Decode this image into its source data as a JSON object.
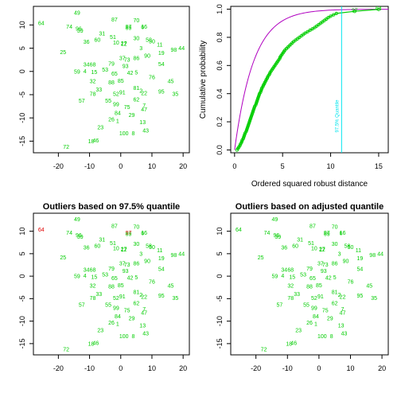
{
  "chart_data": [
    {
      "type": "scatter",
      "title": "",
      "xlabel": "",
      "ylabel": "",
      "xlim": [
        -28,
        22
      ],
      "ylim": [
        -17.5,
        14
      ],
      "xticks": [
        "-20",
        "-10",
        "0",
        "10",
        "20"
      ],
      "yticks": [
        "-15",
        "-10",
        "-5",
        "0",
        "5",
        "10"
      ],
      "point_color": "#00CD00",
      "outliers": []
    },
    {
      "type": "line",
      "title": "",
      "xlabel": "Ordered squared robust distance",
      "ylabel": "Cumulative probability",
      "xlim": [
        -0.4,
        16
      ],
      "ylim": [
        -0.02,
        1.02
      ],
      "xticks": [
        "0",
        "5",
        "10",
        "15"
      ],
      "yticks": [
        "0.0",
        "0.2",
        "0.4",
        "0.6",
        "0.8",
        "1.0"
      ],
      "quantile_line": {
        "x": 11.14,
        "label": "97.5% Quantile",
        "color": "#00E5EE"
      },
      "ecdf_color": "#00CD00",
      "chi2_curve_color": "#B000C0",
      "labelled_points": [
        {
          "id": "97",
          "x": 12.5,
          "y": 0.985
        },
        {
          "id": "64",
          "x": 15.0,
          "y": 0.999
        }
      ]
    },
    {
      "type": "scatter",
      "title": "Outliers based on 97.5% quantile",
      "xlabel": "",
      "ylabel": "",
      "xlim": [
        -28,
        22
      ],
      "ylim": [
        -17.5,
        14
      ],
      "xticks": [
        "-20",
        "-10",
        "0",
        "10",
        "20"
      ],
      "yticks": [
        "-15",
        "-10",
        "-5",
        "0",
        "5",
        "10"
      ],
      "point_color": "#00CD00",
      "outlier_color": "#E00000",
      "outliers": [
        "64",
        "97"
      ]
    },
    {
      "type": "scatter",
      "title": "Outliers based on adjusted quantile",
      "xlabel": "",
      "ylabel": "",
      "xlim": [
        -28,
        22
      ],
      "ylim": [
        -17.5,
        14
      ],
      "xticks": [
        "-20",
        "-10",
        "0",
        "10",
        "20"
      ],
      "yticks": [
        "-15",
        "-10",
        "-5",
        "0",
        "5",
        "10"
      ],
      "point_color": "#00CD00",
      "outliers": []
    }
  ],
  "points": [
    {
      "id": "49",
      "x": -14,
      "y": 12.5
    },
    {
      "id": "64",
      "x": -25.5,
      "y": 10.2
    },
    {
      "id": "87",
      "x": -2,
      "y": 11.0
    },
    {
      "id": "70",
      "x": 5,
      "y": 10.8
    },
    {
      "id": "97",
      "x": 2.5,
      "y": 9.5
    },
    {
      "id": "16",
      "x": 7.5,
      "y": 9.5
    },
    {
      "id": "69",
      "x": 2.5,
      "y": 9.2
    },
    {
      "id": "6",
      "x": 7,
      "y": 9.4
    },
    {
      "id": "74",
      "x": -16.5,
      "y": 9.5
    },
    {
      "id": "96",
      "x": -13.5,
      "y": 9.0
    },
    {
      "id": "39",
      "x": -13,
      "y": 8.6
    },
    {
      "id": "31",
      "x": -6,
      "y": 8.0
    },
    {
      "id": "51",
      "x": -2.5,
      "y": 7.2
    },
    {
      "id": "30",
      "x": 5,
      "y": 7.0
    },
    {
      "id": "58",
      "x": 9,
      "y": 6.6
    },
    {
      "id": "50",
      "x": 10,
      "y": 6.3
    },
    {
      "id": "36",
      "x": -11,
      "y": 6.2
    },
    {
      "id": "60",
      "x": -7.5,
      "y": 6.6
    },
    {
      "id": "10",
      "x": -1.5,
      "y": 6.0
    },
    {
      "id": "12",
      "x": 1,
      "y": 5.8
    },
    {
      "id": "27",
      "x": 1,
      "y": 5.9
    },
    {
      "id": "11",
      "x": 12.5,
      "y": 5.6
    },
    {
      "id": "98",
      "x": 17,
      "y": 4.5
    },
    {
      "id": "44",
      "x": 19.5,
      "y": 4.8
    },
    {
      "id": "25",
      "x": -18.5,
      "y": 4.0
    },
    {
      "id": "3",
      "x": 6.5,
      "y": 4.8
    },
    {
      "id": "19",
      "x": 13,
      "y": 3.8
    },
    {
      "id": "90",
      "x": 8.5,
      "y": 3.2
    },
    {
      "id": "86",
      "x": 5,
      "y": 2.7
    },
    {
      "id": "73",
      "x": 2,
      "y": 2.4
    },
    {
      "id": "37",
      "x": 0.5,
      "y": 2.7
    },
    {
      "id": "79",
      "x": -3,
      "y": 1.5
    },
    {
      "id": "34",
      "x": -11,
      "y": 1.3
    },
    {
      "id": "68",
      "x": -9,
      "y": 1.3
    },
    {
      "id": "93",
      "x": 1.5,
      "y": 1.0
    },
    {
      "id": "54",
      "x": 13,
      "y": 1.4
    },
    {
      "id": "59",
      "x": -14,
      "y": -0.2
    },
    {
      "id": "4",
      "x": -11.5,
      "y": -0.1
    },
    {
      "id": "15",
      "x": -8.5,
      "y": -0.3
    },
    {
      "id": "53",
      "x": -5,
      "y": 0.2
    },
    {
      "id": "65",
      "x": -2,
      "y": -0.6
    },
    {
      "id": "42",
      "x": 3,
      "y": -0.5
    },
    {
      "id": "5",
      "x": 5,
      "y": -0.4
    },
    {
      "id": "76",
      "x": 10,
      "y": -1.4
    },
    {
      "id": "45",
      "x": 16,
      "y": -2.3
    },
    {
      "id": "32",
      "x": -9,
      "y": -2.3
    },
    {
      "id": "88",
      "x": -3,
      "y": -2.5
    },
    {
      "id": "85",
      "x": 0,
      "y": -2.2
    },
    {
      "id": "81",
      "x": 5,
      "y": -3.7
    },
    {
      "id": "2",
      "x": 6.5,
      "y": -4.3
    },
    {
      "id": "33",
      "x": -7,
      "y": -4.1
    },
    {
      "id": "78",
      "x": -9,
      "y": -5.0
    },
    {
      "id": "91",
      "x": 0.5,
      "y": -4.7
    },
    {
      "id": "52",
      "x": -1.5,
      "y": -5.0
    },
    {
      "id": "22",
      "x": 7.5,
      "y": -4.8
    },
    {
      "id": "95",
      "x": 13,
      "y": -4.5
    },
    {
      "id": "35",
      "x": 17.5,
      "y": -5.0
    },
    {
      "id": "57",
      "x": -12.5,
      "y": -6.5
    },
    {
      "id": "55",
      "x": -4,
      "y": -6.5
    },
    {
      "id": "62",
      "x": 5,
      "y": -6.2
    },
    {
      "id": "99",
      "x": -1.5,
      "y": -7.2
    },
    {
      "id": "75",
      "x": 2,
      "y": -7.8
    },
    {
      "id": "7",
      "x": 7.5,
      "y": -7.5
    },
    {
      "id": "47",
      "x": 7.5,
      "y": -8.3
    },
    {
      "id": "84",
      "x": -1,
      "y": -9.1
    },
    {
      "id": "29",
      "x": 3.5,
      "y": -9.5
    },
    {
      "id": "26",
      "x": -3,
      "y": -10.5
    },
    {
      "id": "1",
      "x": -1,
      "y": -10.8
    },
    {
      "id": "13",
      "x": 7,
      "y": -11.1
    },
    {
      "id": "23",
      "x": -6.5,
      "y": -12.2
    },
    {
      "id": "100",
      "x": 1,
      "y": -13.5
    },
    {
      "id": "8",
      "x": 4,
      "y": -13.5
    },
    {
      "id": "43",
      "x": 8,
      "y": -12.9
    },
    {
      "id": "18",
      "x": -9.5,
      "y": -15.2
    },
    {
      "id": "46",
      "x": -8,
      "y": -15.0
    },
    {
      "id": "72",
      "x": -17.5,
      "y": -16.4
    }
  ],
  "ecdf": [
    [
      0.25,
      0.0
    ],
    [
      0.35,
      0.01
    ],
    [
      0.45,
      0.02
    ],
    [
      0.55,
      0.03
    ],
    [
      0.6,
      0.04
    ],
    [
      0.7,
      0.05
    ],
    [
      0.75,
      0.06
    ],
    [
      0.8,
      0.07
    ],
    [
      0.9,
      0.08
    ],
    [
      0.95,
      0.09
    ],
    [
      1.0,
      0.1
    ],
    [
      1.05,
      0.11
    ],
    [
      1.1,
      0.12
    ],
    [
      1.2,
      0.13
    ],
    [
      1.25,
      0.14
    ],
    [
      1.3,
      0.15
    ],
    [
      1.35,
      0.16
    ],
    [
      1.4,
      0.17
    ],
    [
      1.45,
      0.18
    ],
    [
      1.5,
      0.19
    ],
    [
      1.55,
      0.2
    ],
    [
      1.6,
      0.21
    ],
    [
      1.65,
      0.22
    ],
    [
      1.7,
      0.23
    ],
    [
      1.75,
      0.24
    ],
    [
      1.8,
      0.25
    ],
    [
      1.85,
      0.26
    ],
    [
      1.9,
      0.27
    ],
    [
      1.95,
      0.28
    ],
    [
      2.0,
      0.29
    ],
    [
      2.05,
      0.3
    ],
    [
      2.1,
      0.31
    ],
    [
      2.2,
      0.32
    ],
    [
      2.25,
      0.33
    ],
    [
      2.3,
      0.34
    ],
    [
      2.35,
      0.35
    ],
    [
      2.4,
      0.36
    ],
    [
      2.45,
      0.37
    ],
    [
      2.5,
      0.38
    ],
    [
      2.55,
      0.39
    ],
    [
      2.6,
      0.4
    ],
    [
      2.7,
      0.41
    ],
    [
      2.75,
      0.42
    ],
    [
      2.8,
      0.43
    ],
    [
      2.85,
      0.44
    ],
    [
      2.95,
      0.45
    ],
    [
      3.0,
      0.46
    ],
    [
      3.1,
      0.47
    ],
    [
      3.15,
      0.48
    ],
    [
      3.25,
      0.49
    ],
    [
      3.3,
      0.5
    ],
    [
      3.4,
      0.51
    ],
    [
      3.45,
      0.52
    ],
    [
      3.55,
      0.53
    ],
    [
      3.65,
      0.54
    ],
    [
      3.7,
      0.55
    ],
    [
      3.8,
      0.56
    ],
    [
      3.9,
      0.57
    ],
    [
      4.0,
      0.58
    ],
    [
      4.1,
      0.59
    ],
    [
      4.2,
      0.6
    ],
    [
      4.3,
      0.61
    ],
    [
      4.4,
      0.62
    ],
    [
      4.5,
      0.63
    ],
    [
      4.6,
      0.64
    ],
    [
      4.7,
      0.65
    ],
    [
      4.75,
      0.66
    ],
    [
      4.85,
      0.67
    ],
    [
      4.95,
      0.68
    ],
    [
      5.05,
      0.69
    ],
    [
      5.15,
      0.7
    ],
    [
      5.25,
      0.71
    ],
    [
      5.4,
      0.72
    ],
    [
      5.55,
      0.73
    ],
    [
      5.7,
      0.74
    ],
    [
      5.85,
      0.75
    ],
    [
      6.0,
      0.76
    ],
    [
      6.15,
      0.77
    ],
    [
      6.35,
      0.78
    ],
    [
      6.55,
      0.79
    ],
    [
      6.75,
      0.8
    ],
    [
      6.95,
      0.81
    ],
    [
      7.15,
      0.82
    ],
    [
      7.35,
      0.83
    ],
    [
      7.6,
      0.84
    ],
    [
      7.85,
      0.85
    ],
    [
      8.1,
      0.86
    ],
    [
      8.35,
      0.87
    ],
    [
      8.55,
      0.88
    ],
    [
      8.75,
      0.89
    ],
    [
      8.95,
      0.9
    ],
    [
      9.15,
      0.91
    ],
    [
      9.35,
      0.92
    ],
    [
      9.55,
      0.93
    ],
    [
      9.75,
      0.94
    ],
    [
      10.0,
      0.95
    ],
    [
      10.3,
      0.96
    ],
    [
      10.6,
      0.97
    ],
    [
      12.5,
      0.985
    ],
    [
      15.0,
      0.999
    ]
  ]
}
